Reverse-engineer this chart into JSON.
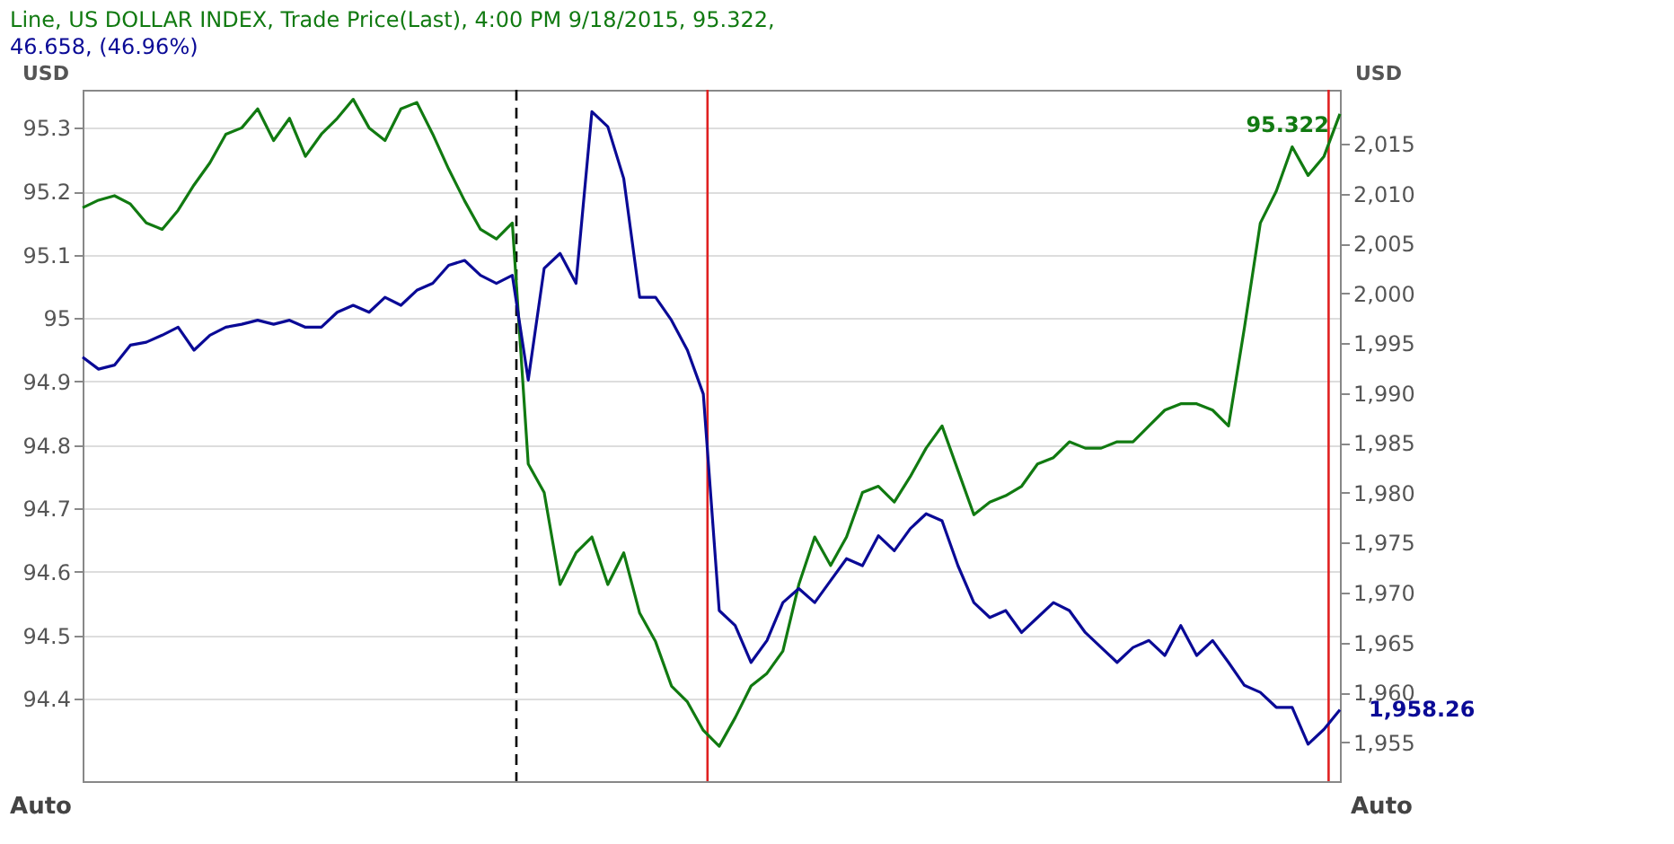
{
  "chart_data": {
    "type": "line",
    "title": "Line, US DOLLAR INDEX, Trade Price(Last), 4:00 PM 9/18/2015, 95.322,",
    "subtitle": "46.658, (46.96%)",
    "ylabel": "USD",
    "y2label": "USD",
    "annotations": [
      "Auto",
      "Auto"
    ],
    "categories": [
      null,
      null,
      null,
      null,
      null,
      null,
      null,
      null,
      null,
      null,
      null,
      null,
      null,
      null,
      null,
      null,
      null,
      null,
      null,
      null,
      null,
      null,
      null,
      null,
      null,
      null,
      null,
      null,
      null,
      null,
      null,
      null,
      null,
      null,
      null,
      null,
      null,
      null,
      null,
      null,
      null,
      null,
      null,
      null,
      null,
      null,
      null,
      null,
      null,
      null,
      null,
      null,
      null,
      null,
      null,
      null,
      null,
      null,
      null,
      null,
      null,
      null,
      null,
      null,
      null,
      null,
      null,
      null,
      null,
      null,
      null,
      null,
      null,
      null,
      null,
      null,
      null,
      null,
      null,
      null
    ],
    "series": [
      {
        "color": "#117a11",
        "values": [
          95.174,
          95.186,
          95.193,
          95.18,
          95.15,
          95.14,
          95.17,
          95.21,
          95.245,
          95.29,
          95.3,
          95.33,
          95.28,
          95.315,
          95.255,
          95.29,
          95.315,
          95.345,
          95.3,
          95.28,
          95.33,
          95.34,
          95.29,
          95.235,
          95.185,
          95.14,
          95.125,
          95.15,
          94.77,
          94.725,
          94.58,
          94.63,
          94.655,
          94.58,
          94.63,
          94.535,
          94.49,
          94.42,
          94.395,
          94.35,
          94.325,
          94.37,
          94.42,
          94.44,
          94.475,
          94.58,
          94.655,
          94.61,
          94.655,
          94.725,
          94.735,
          94.71,
          94.75,
          94.795,
          94.83,
          94.76,
          94.69,
          94.71,
          94.72,
          94.735,
          94.77,
          94.78,
          94.805,
          94.795,
          94.795,
          94.805,
          94.805,
          94.83,
          94.855,
          94.865,
          94.865,
          94.855,
          94.83,
          94.985,
          95.15,
          95.2,
          95.27,
          95.225,
          95.255,
          95.322
        ],
        "value_labels": [
          null,
          null,
          null,
          null,
          null,
          null,
          null,
          null,
          null,
          null,
          null,
          null,
          null,
          null,
          null,
          null,
          null,
          null,
          null,
          null,
          null,
          null,
          null,
          null,
          null,
          null,
          null,
          null,
          null,
          null,
          null,
          null,
          null,
          null,
          null,
          null,
          null,
          null,
          null,
          null,
          null,
          null,
          null,
          null,
          null,
          null,
          null,
          null,
          null,
          null,
          null,
          null,
          null,
          null,
          null,
          null,
          null,
          null,
          null,
          null,
          null,
          null,
          null,
          null,
          null,
          null,
          null,
          null,
          null,
          null,
          null,
          null,
          null,
          null,
          null,
          null,
          null,
          null,
          null,
          "95.322"
        ]
      },
      {
        "color": "#0a0a96",
        "axis": "y2",
        "values": [
          1993.6,
          1992.4,
          1992.8,
          1994.8,
          1995.1,
          1995.8,
          1996.6,
          1994.3,
          1995.8,
          1996.6,
          1996.9,
          1997.3,
          1996.9,
          1997.3,
          1996.6,
          1996.6,
          1998.1,
          1998.8,
          1998.1,
          1999.6,
          1998.8,
          2000.3,
          2001.0,
          2002.8,
          2003.3,
          2001.8,
          2001.0,
          2001.8,
          1991.3,
          2002.5,
          2004.0,
          2001.0,
          2018.2,
          2016.7,
          2011.5,
          1999.6,
          1999.6,
          1997.3,
          1994.3,
          1989.9,
          1968.2,
          1966.7,
          1963.0,
          1965.2,
          1969.0,
          1970.4,
          1969.0,
          1971.2,
          1973.4,
          1972.7,
          1975.7,
          1974.2,
          1976.4,
          1977.9,
          1977.2,
          1972.7,
          1969.0,
          1967.5,
          1968.2,
          1966.0,
          1967.5,
          1969.0,
          1968.2,
          1966.0,
          1964.5,
          1963.0,
          1964.5,
          1965.2,
          1963.7,
          1966.7,
          1963.7,
          1965.2,
          1963.0,
          1960.7,
          1960.0,
          1958.5,
          1958.5,
          1954.8,
          1956.3,
          1958.26
        ],
        "value_labels": [
          null,
          null,
          null,
          null,
          null,
          null,
          null,
          null,
          null,
          null,
          null,
          null,
          null,
          null,
          null,
          null,
          null,
          null,
          null,
          null,
          null,
          null,
          null,
          null,
          null,
          null,
          null,
          null,
          null,
          null,
          null,
          null,
          null,
          null,
          null,
          null,
          null,
          null,
          null,
          null,
          null,
          null,
          null,
          null,
          null,
          null,
          null,
          null,
          null,
          null,
          null,
          null,
          null,
          null,
          null,
          null,
          null,
          null,
          null,
          null,
          null,
          null,
          null,
          null,
          null,
          null,
          null,
          null,
          null,
          null,
          null,
          null,
          null,
          null,
          null,
          null,
          null,
          null,
          null,
          "1,958.26"
        ]
      }
    ],
    "ylim": [
      94.27,
      95.36
    ],
    "yticks": [
      94.4,
      94.5,
      94.6,
      94.7,
      94.8,
      94.9,
      {
        "value": 95,
        "label": "95"
      },
      95.1,
      95.2,
      95.3
    ],
    "y2lim": [
      1951.1,
      2020.4
    ],
    "y2ticks": [
      {
        "value": 1955,
        "label": "1,955"
      },
      {
        "value": 1960,
        "label": "1,960"
      },
      {
        "value": 1965,
        "label": "1,965"
      },
      {
        "value": 1970,
        "label": "1,970"
      },
      {
        "value": 1975,
        "label": "1,975"
      },
      {
        "value": 1980,
        "label": "1,980"
      },
      {
        "value": 1985,
        "label": "1,985"
      },
      {
        "value": 1990,
        "label": "1,990"
      },
      {
        "value": 1995,
        "label": "1,995"
      },
      {
        "value": 2000,
        "label": "2,000"
      },
      {
        "value": 2005,
        "label": "2,005"
      },
      {
        "value": 2010,
        "label": "2,010"
      },
      {
        "value": 2015,
        "label": "2,015"
      }
    ],
    "grid": "y",
    "marker": "none",
    "line_style": "solid"
  }
}
